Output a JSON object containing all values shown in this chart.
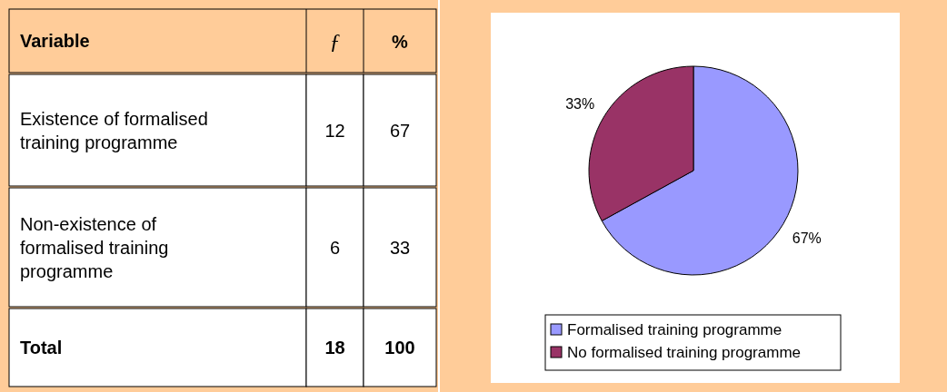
{
  "chart_data": [
    {
      "type": "other",
      "xlabel": "Variable",
      "categories": [
        "Existence of formalised training programme",
        "Non-existence of formalised training programme",
        "Total"
      ],
      "series": [
        {
          "name": "ƒ",
          "values": [
            12,
            6,
            18
          ]
        },
        {
          "name": "%",
          "values": [
            67,
            33,
            100
          ]
        }
      ],
      "data_labels": true
    },
    {
      "type": "pie",
      "categories": [
        "Formalised training programme",
        "No formalised training programme"
      ],
      "values": [
        67,
        33
      ],
      "colors": [
        "#9999ff",
        "#993366"
      ],
      "value_labels": [
        "67%",
        "33%"
      ],
      "legend": "bottom"
    }
  ]
}
